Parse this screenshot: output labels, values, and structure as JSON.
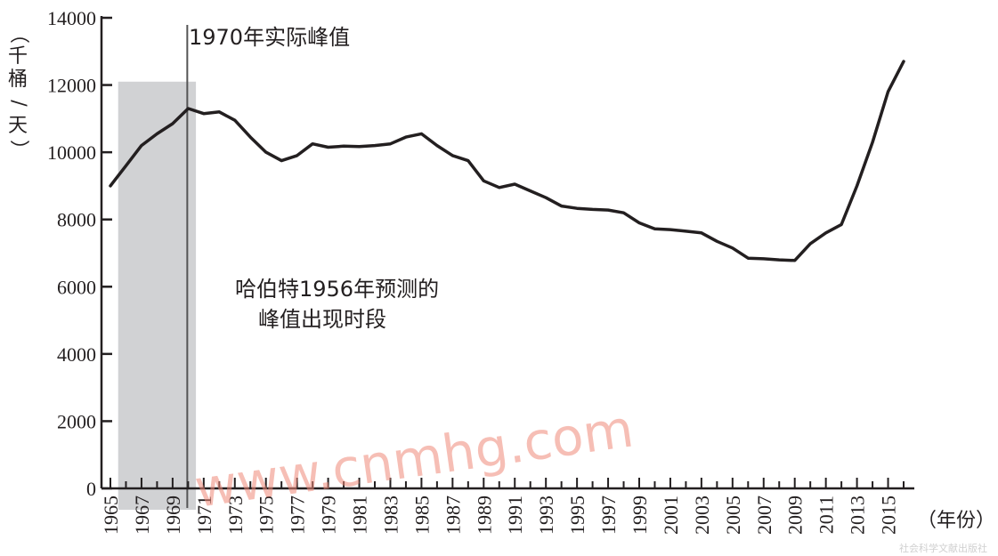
{
  "chart_data": {
    "type": "line",
    "ylabel": "（千桶/天）",
    "xlabel": "（年份）",
    "ylim": [
      0,
      14000
    ],
    "xlim": [
      1965,
      2016
    ],
    "y_ticks": [
      0,
      2000,
      4000,
      6000,
      8000,
      10000,
      12000,
      14000
    ],
    "x_tick_labels": [
      "1965",
      "1967",
      "1969",
      "1971",
      "1973",
      "1975",
      "1977",
      "1979",
      "1981",
      "1983",
      "1985",
      "1987",
      "1989",
      "1991",
      "1993",
      "1995",
      "1997",
      "1999",
      "2001",
      "2003",
      "2005",
      "2007",
      "2009",
      "2011",
      "2013",
      "2015"
    ],
    "x_ticks_every": 1,
    "grid": false,
    "series": [
      {
        "x": [
          1965,
          1966,
          1967,
          1968,
          1969,
          1970,
          1971,
          1972,
          1973,
          1974,
          1975,
          1976,
          1977,
          1978,
          1979,
          1980,
          1981,
          1982,
          1983,
          1984,
          1985,
          1986,
          1987,
          1988,
          1989,
          1990,
          1991,
          1992,
          1993,
          1994,
          1995,
          1996,
          1997,
          1998,
          1999,
          2000,
          2001,
          2002,
          2003,
          2004,
          2005,
          2006,
          2007,
          2008,
          2009,
          2010,
          2011,
          2012,
          2013,
          2014,
          2015,
          2016
        ],
        "values": [
          9000,
          9600,
          10200,
          10550,
          10850,
          11300,
          11150,
          11200,
          10950,
          10450,
          10000,
          9750,
          9900,
          10250,
          10150,
          10180,
          10170,
          10200,
          10250,
          10450,
          10550,
          10200,
          9900,
          9750,
          9150,
          8950,
          9050,
          8850,
          8650,
          8400,
          8330,
          8300,
          8280,
          8200,
          7900,
          7720,
          7700,
          7650,
          7600,
          7350,
          7150,
          6850,
          6830,
          6800,
          6780,
          7280,
          7600,
          7850,
          9000,
          10300,
          11800,
          12700
        ]
      }
    ],
    "shaded_region": {
      "x": [
        1965.5,
        1970.5
      ],
      "y": [
        0,
        12100
      ],
      "color": "#d1d2d4"
    },
    "vline": {
      "x": 1970,
      "label": "1970年实际峰值"
    },
    "annotations": [
      {
        "text": "哈伯特1956年预测的"
      },
      {
        "text": "峰值出现时段"
      }
    ]
  },
  "watermark": "www.cnmhg.com",
  "publisher": "社会科学文献出版社",
  "colors": {
    "line": "#231f20",
    "shade": "#d1d2d4",
    "axis": "#231f20",
    "watermark": "#f08a7a"
  }
}
